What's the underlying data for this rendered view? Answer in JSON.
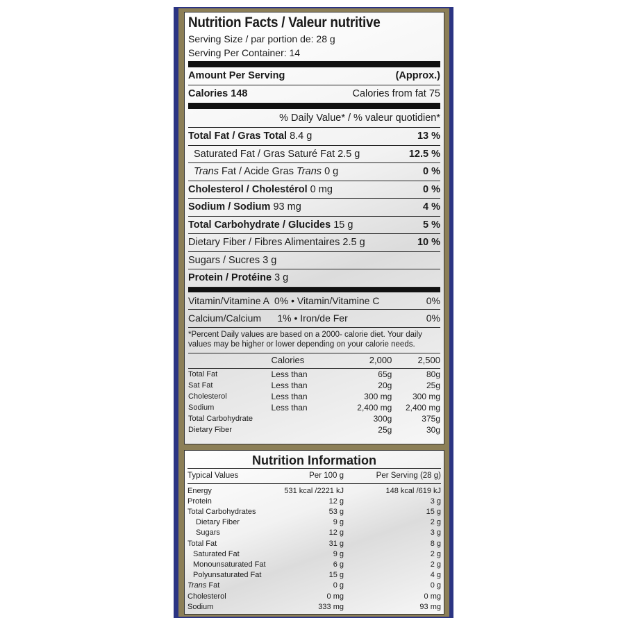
{
  "facts": {
    "title": "Nutrition Facts / Valeur nutritive",
    "serving_size": "Serving Size / par portion de: 28 g",
    "servings_per_container": "Serving Per Container: 14",
    "amount_per_serving": "Amount Per Serving",
    "approx": "(Approx.)",
    "calories": "Calories 148",
    "calories_from_fat": "Calories from fat 75",
    "daily_value_header": "% Daily Value* / % valeur quotidien*",
    "nutrients": [
      {
        "label": "Total Fat / Gras Total",
        "amount": "8.4 g",
        "dv": "13 %"
      },
      {
        "label": "Saturated Fat / Gras Saturé Fat",
        "amount": "2.5 g",
        "dv": "12.5 %"
      },
      {
        "label_italic": "Trans",
        "label": "Fat / Acide Gras",
        "label_italic2": "Trans",
        "amount": "0 g",
        "dv": "0 %"
      },
      {
        "label": "Cholesterol / Cholestérol",
        "amount": "0 mg",
        "dv": "0 %"
      },
      {
        "label": "Sodium / Sodium",
        "amount": "93 mg",
        "dv": "4 %"
      },
      {
        "label": "Total Carbohydrate / Glucides",
        "amount": "15 g",
        "dv": "5 %"
      },
      {
        "label": "Dietary Fiber / Fibres Alimentaires",
        "amount": "2.5 g",
        "dv": "10 %"
      },
      {
        "label": "Sugars / Sucres",
        "amount": "3 g",
        "dv": ""
      },
      {
        "label": "Protein / Protéine",
        "amount": "3 g",
        "dv": ""
      }
    ],
    "vitamins": [
      {
        "left": "Vitamin/Vitamine A  0% • Vitamin/Vitamine C",
        "right": "0%"
      },
      {
        "left": "Calcium/Calcium      1% • Iron/de Fer",
        "right": "0%"
      }
    ],
    "footnote": "*Percent Daily values are based on a 2000- calorie diet. Your daily values may be higher or lower depending on your calorie needs.",
    "dv_table": {
      "header": [
        "",
        "Calories",
        "2,000",
        "2,500"
      ],
      "rows": [
        [
          "Total Fat",
          "Less than",
          "65g",
          "80g"
        ],
        [
          "Sat Fat",
          "Less than",
          "20g",
          "25g"
        ],
        [
          "Cholesterol",
          "Less than",
          "300 mg",
          "300 mg"
        ],
        [
          "Sodium",
          "Less than",
          "2,400 mg",
          "2,400 mg"
        ],
        [
          "Total Carbohydrate",
          "",
          "300g",
          "375g"
        ],
        [
          "Dietary Fiber",
          "",
          "25g",
          "30g"
        ]
      ]
    }
  },
  "info": {
    "title": "Nutrition Information",
    "header": [
      "Typical Values",
      "Per 100 g",
      "Per Serving (28 g)"
    ],
    "rows": [
      [
        "Energy",
        "531 kcal /2221 kJ",
        "148 kcal /619 kJ"
      ],
      [
        "Protein",
        "12 g",
        "3 g"
      ],
      [
        "Total Carbohydrates",
        "53 g",
        "15 g"
      ],
      [
        "Dietary Fiber",
        "9 g",
        "2 g"
      ],
      [
        "Sugars",
        "12 g",
        "3 g"
      ],
      [
        "Total Fat",
        "31 g",
        "8 g"
      ],
      [
        "Saturated Fat",
        "9 g",
        "2 g"
      ],
      [
        "Monounsaturated Fat",
        "6 g",
        "2 g"
      ],
      [
        "Polyunsaturated Fat",
        "15 g",
        "4 g"
      ],
      [
        "Trans Fat",
        "0 g",
        "0 g"
      ],
      [
        "Cholesterol",
        "0 mg",
        "0 mg"
      ],
      [
        "Sodium",
        "333 mg",
        "93 mg"
      ]
    ]
  },
  "colors": {
    "band": "#2b3483",
    "border": "#8c7f57"
  }
}
